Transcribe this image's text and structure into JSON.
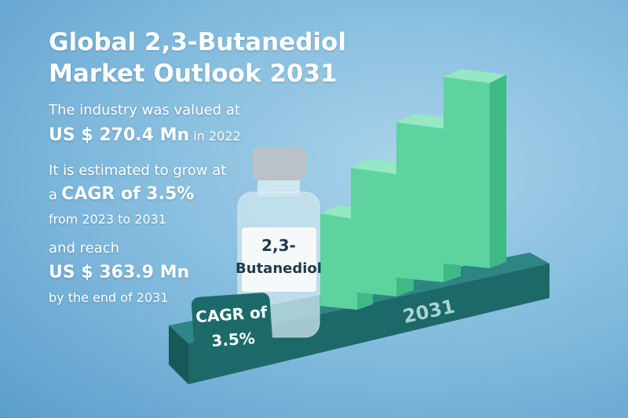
{
  "title": "Global 2,3-Butanediol Market Outlook 2031",
  "facts": [
    {
      "lead": "The industry was valued at",
      "value": "US $ 270.4 Mn",
      "tail": "in 2022"
    },
    {
      "lead": "It is estimated to grow at",
      "prefix": "a",
      "value": "CAGR of 3.5%",
      "tail": "from 2023 to 2031"
    },
    {
      "lead": "and reach",
      "value": "US $ 363.9 Mn",
      "tail": "by the end of 2031"
    }
  ],
  "bottle_label": [
    "2,3-",
    "Butanediol"
  ],
  "badge": [
    "CAGR of",
    "3.5%"
  ],
  "platform_label": "2031"
}
